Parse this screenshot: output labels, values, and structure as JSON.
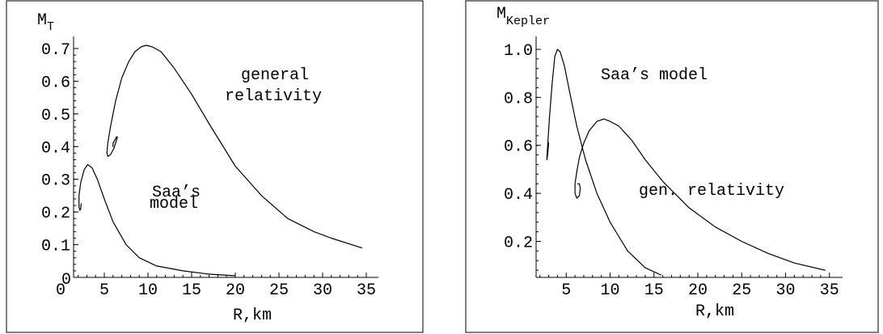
{
  "chart_data": [
    {
      "type": "line",
      "xlabel": "R,km",
      "ylabel": {
        "main": "M",
        "sub": "T"
      },
      "xlim": [
        1.5,
        35
      ],
      "ylim": [
        0,
        0.72
      ],
      "xticks": [
        0,
        5,
        10,
        15,
        20,
        25,
        30,
        35
      ],
      "xtick_labels": [
        "0",
        "5",
        "10",
        "15",
        "20",
        "25",
        "30",
        "35"
      ],
      "yticks": [
        0.1,
        0.2,
        0.3,
        0.4,
        0.5,
        0.6,
        0.7
      ],
      "ytick_labels": [
        "0.1",
        "0.2",
        "0.3",
        "0.4",
        "0.5",
        "0.6",
        "0.7"
      ],
      "grid": false,
      "annotations": [
        {
          "id": "gr",
          "lines": [
            "general",
            "relativity"
          ]
        },
        {
          "id": "saa",
          "lines": [
            "Saa’s",
            "model"
          ]
        }
      ],
      "series": [
        {
          "id": "general-relativity",
          "x": [
            34.5,
            31,
            29,
            26,
            23,
            20,
            17,
            15,
            13,
            11.5,
            10.5,
            9.8,
            9.2,
            8.5,
            7.8,
            7.0,
            6.3,
            5.7,
            5.4,
            5.3,
            5.4,
            5.7,
            6.1,
            6.4,
            6.5,
            6.4,
            6.2,
            6.0,
            6.0
          ],
          "y": [
            0.09,
            0.12,
            0.14,
            0.18,
            0.25,
            0.34,
            0.47,
            0.56,
            0.64,
            0.69,
            0.705,
            0.71,
            0.705,
            0.69,
            0.66,
            0.61,
            0.54,
            0.46,
            0.41,
            0.38,
            0.37,
            0.375,
            0.395,
            0.42,
            0.43,
            0.43,
            0.42,
            0.41,
            0.4
          ]
        },
        {
          "id": "saa-model",
          "x": [
            20.0,
            17,
            14,
            11,
            9,
            7.5,
            6,
            5,
            4.2,
            3.6,
            3.1,
            2.7,
            2.3,
            2.1,
            2.1,
            2.2,
            2.3,
            2.35
          ],
          "y": [
            0.005,
            0.01,
            0.02,
            0.035,
            0.06,
            0.1,
            0.17,
            0.24,
            0.3,
            0.335,
            0.345,
            0.33,
            0.29,
            0.25,
            0.215,
            0.205,
            0.21,
            0.225
          ]
        }
      ]
    },
    {
      "type": "line",
      "xlabel": "R,km",
      "ylabel": {
        "main": "M",
        "sub": "Kepler"
      },
      "xlim": [
        1.5,
        35
      ],
      "ylim": [
        0.05,
        1.02
      ],
      "xticks": [
        5,
        10,
        15,
        20,
        25,
        30,
        35
      ],
      "xtick_labels": [
        "5",
        "10",
        "15",
        "20",
        "25",
        "30",
        "35"
      ],
      "yticks": [
        0.2,
        0.4,
        0.6,
        0.8,
        1.0
      ],
      "ytick_labels": [
        "0.2",
        "0.4",
        "0.6",
        "0.8",
        "1.0"
      ],
      "grid": false,
      "annotations": [
        {
          "id": "saa",
          "lines": [
            "Saa’s model"
          ]
        },
        {
          "id": "gr",
          "lines": [
            "gen. relativity"
          ]
        }
      ],
      "series": [
        {
          "id": "saa-model",
          "x": [
            15.8,
            14,
            12,
            10,
            8.5,
            7.2,
            6.2,
            5.4,
            4.8,
            4.3,
            4.0,
            3.7,
            3.4,
            3.1,
            2.9,
            2.8,
            2.8,
            2.9,
            3.0
          ],
          "y": [
            0.06,
            0.09,
            0.16,
            0.28,
            0.4,
            0.54,
            0.68,
            0.82,
            0.93,
            0.99,
            1.0,
            0.97,
            0.86,
            0.72,
            0.61,
            0.55,
            0.54,
            0.57,
            0.61
          ]
        },
        {
          "id": "general-relativity",
          "x": [
            34.5,
            31,
            28,
            25,
            22,
            19,
            16,
            14,
            12.5,
            11,
            10,
            9.3,
            8.5,
            7.6,
            7.0,
            6.5,
            6.2,
            6.0,
            6.0,
            6.2,
            6.5,
            6.6,
            6.5,
            6.3
          ],
          "y": [
            0.08,
            0.11,
            0.15,
            0.2,
            0.26,
            0.34,
            0.45,
            0.54,
            0.62,
            0.68,
            0.7,
            0.71,
            0.7,
            0.66,
            0.61,
            0.55,
            0.49,
            0.44,
            0.4,
            0.38,
            0.39,
            0.42,
            0.44,
            0.44
          ]
        }
      ]
    }
  ]
}
